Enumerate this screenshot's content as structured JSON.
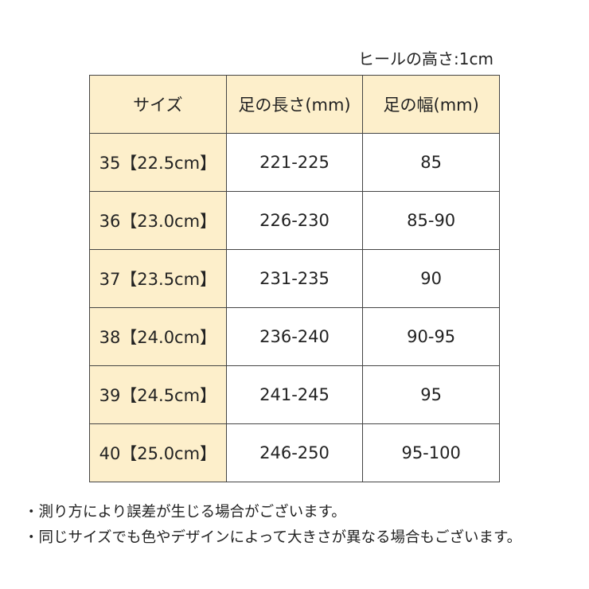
{
  "heel_height": "ヒールの高さ:1cm",
  "table": {
    "headers": [
      "サイズ",
      "足の長さ(mm)",
      "足の幅(mm)"
    ],
    "rows": [
      [
        "35【22.5cm】",
        "221-225",
        "85"
      ],
      [
        "36【23.0cm】",
        "226-230",
        "85-90"
      ],
      [
        "37【23.5cm】",
        "231-235",
        "90"
      ],
      [
        "38【24.0cm】",
        "236-240",
        "90-95"
      ],
      [
        "39【24.5cm】",
        "241-245",
        "95"
      ],
      [
        "40【25.0cm】",
        "246-250",
        "95-100"
      ]
    ]
  },
  "notes": [
    "・測り方により誤差が生じる場合がございます。",
    "・同じサイズでも色やデザインによって大きさが異なる場合もございます。"
  ],
  "colors": {
    "header_bg": "#fdefcb",
    "border": "#444444"
  }
}
